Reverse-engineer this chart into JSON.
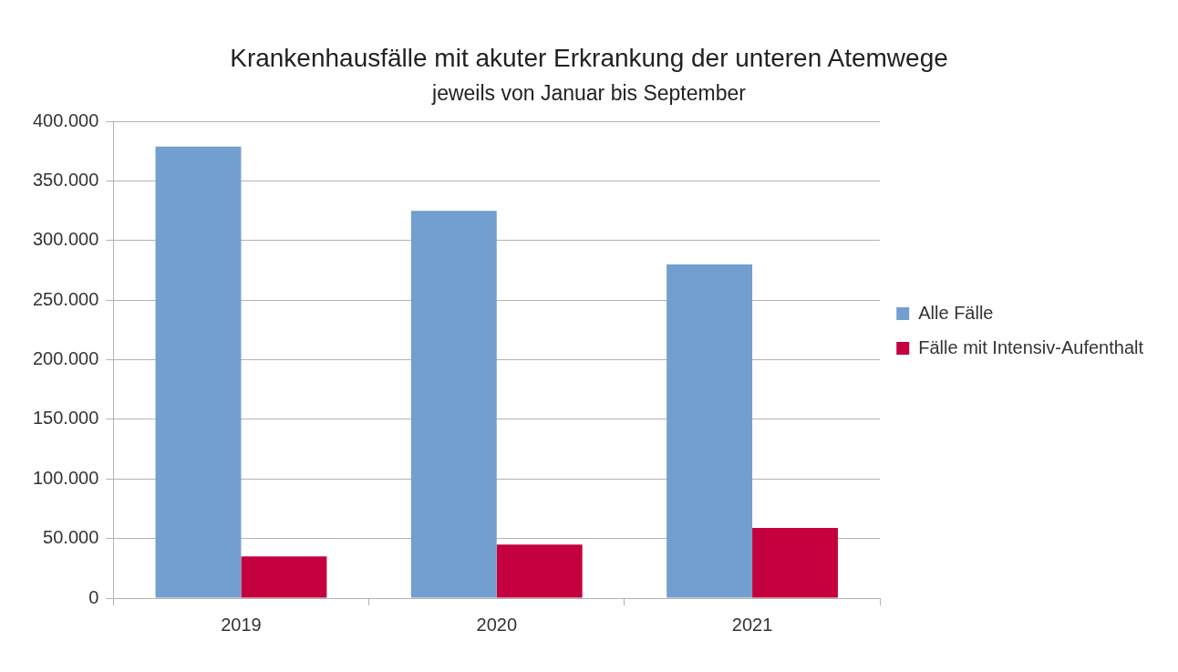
{
  "chart_data": {
    "type": "bar",
    "title": "Krankenhausfälle mit akuter Erkrankung der unteren Atemwege",
    "subtitle": "jeweils von Januar bis September",
    "categories": [
      "2019",
      "2020",
      "2021"
    ],
    "series": [
      {
        "name": "Alle Fälle",
        "color": "#729fcf",
        "values": [
          379000,
          325000,
          280000
        ]
      },
      {
        "name": "Fälle mit Intensiv-Aufenthalt",
        "color": "#c5003e",
        "values": [
          35000,
          45000,
          59000
        ]
      }
    ],
    "ylim": [
      0,
      400000
    ],
    "yticks": [
      {
        "value": 0,
        "label": "0"
      },
      {
        "value": 50000,
        "label": "50.000"
      },
      {
        "value": 100000,
        "label": "100.000"
      },
      {
        "value": 150000,
        "label": "150.000"
      },
      {
        "value": 200000,
        "label": "200.000"
      },
      {
        "value": 250000,
        "label": "250.000"
      },
      {
        "value": 300000,
        "label": "300.000"
      },
      {
        "value": 350000,
        "label": "350.000"
      },
      {
        "value": 400000,
        "label": "400.000"
      }
    ],
    "grid": "y",
    "legend": "right"
  }
}
